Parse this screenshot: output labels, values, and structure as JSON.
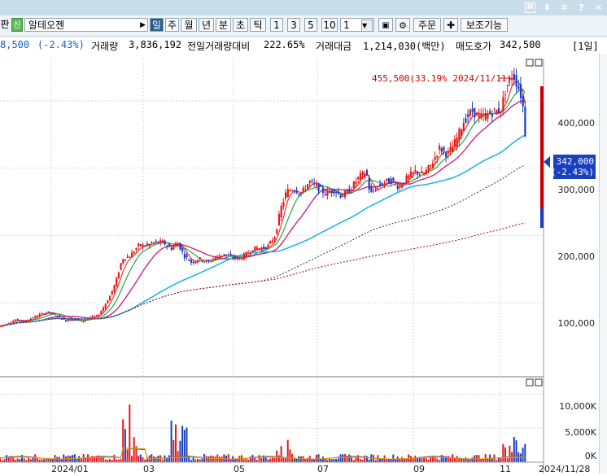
{
  "toolbar": {
    "mode_label": "판",
    "new_badge": "신",
    "stock_name": "알테오젠",
    "period_buttons": [
      "일",
      "주",
      "월",
      "년",
      "분",
      "초",
      "틱"
    ],
    "interval_buttons": [
      "1",
      "3",
      "5",
      "10"
    ],
    "interval_value": "1",
    "order_button": "주문",
    "aux_button": "보조기능",
    "sys_icons": [
      "N",
      "?"
    ]
  },
  "infobar": {
    "price": "8,500",
    "change": "(-2.43%)",
    "volume_label": "거래량",
    "volume": "3,836,192",
    "prev_ratio_label": "전일거래량대비",
    "prev_ratio": "222.65%",
    "amount_label": "거래대금",
    "amount": "1,214,030(백만)",
    "ask_label": "매도호가",
    "ask": "342,500",
    "period_tag": "[1일]"
  },
  "chart_data": [
    {
      "type": "candlestick",
      "title": "",
      "annotation": "455,500(33.19% 2024/11/11)",
      "last_price_label": "342,000",
      "last_change_label": "(-2.43%)",
      "yticks": [
        "400,000",
        "300,000",
        "200,000",
        "100,000"
      ],
      "ytick_values": [
        400000,
        300000,
        200000,
        100000
      ],
      "ylim": [
        -10000,
        470000
      ],
      "x_labels": [
        "2024/01",
        "03",
        "05",
        "07",
        "09",
        "11"
      ],
      "end_date": "2024/11/28",
      "price_path": [
        [
          0,
          65000
        ],
        [
          10,
          70000
        ],
        [
          20,
          75000
        ],
        [
          30,
          72000
        ],
        [
          40,
          78000
        ],
        [
          50,
          83000
        ],
        [
          60,
          86000
        ],
        [
          70,
          80000
        ],
        [
          80,
          73000
        ],
        [
          90,
          76000
        ],
        [
          100,
          72000
        ],
        [
          110,
          78000
        ],
        [
          120,
          80000
        ],
        [
          128,
          95000
        ],
        [
          135,
          110000
        ],
        [
          142,
          130000
        ],
        [
          150,
          165000
        ],
        [
          160,
          170000
        ],
        [
          170,
          185000
        ],
        [
          180,
          185000
        ],
        [
          190,
          190000
        ],
        [
          200,
          190000
        ],
        [
          210,
          180000
        ],
        [
          218,
          190000
        ],
        [
          226,
          170000
        ],
        [
          235,
          160000
        ],
        [
          245,
          165000
        ],
        [
          255,
          160000
        ],
        [
          265,
          168000
        ],
        [
          275,
          172000
        ],
        [
          285,
          168000
        ],
        [
          295,
          165000
        ],
        [
          305,
          175000
        ],
        [
          315,
          182000
        ],
        [
          322,
          180000
        ],
        [
          330,
          185000
        ],
        [
          338,
          200000
        ],
        [
          345,
          240000
        ],
        [
          352,
          265000
        ],
        [
          360,
          270000
        ],
        [
          370,
          262000
        ],
        [
          380,
          280000
        ],
        [
          390,
          272000
        ],
        [
          400,
          262000
        ],
        [
          410,
          268000
        ],
        [
          420,
          258000
        ],
        [
          430,
          268000
        ],
        [
          440,
          285000
        ],
        [
          450,
          295000
        ],
        [
          455,
          260000
        ],
        [
          460,
          268000
        ],
        [
          470,
          278000
        ],
        [
          480,
          282000
        ],
        [
          490,
          272000
        ],
        [
          500,
          285000
        ],
        [
          510,
          295000
        ],
        [
          520,
          290000
        ],
        [
          530,
          305000
        ],
        [
          540,
          330000
        ],
        [
          550,
          320000
        ],
        [
          560,
          340000
        ],
        [
          570,
          370000
        ],
        [
          580,
          385000
        ],
        [
          590,
          375000
        ],
        [
          600,
          380000
        ],
        [
          608,
          385000
        ],
        [
          615,
          385000
        ],
        [
          622,
          420000
        ],
        [
          630,
          440000
        ],
        [
          637,
          420000
        ],
        [
          642,
          400000
        ],
        [
          646,
          342000
        ]
      ],
      "series": [
        {
          "name": "",
          "color": "#ee3333"
        },
        {
          "name": "",
          "color": "#22aa44"
        },
        {
          "name": "",
          "color": "#cc2288"
        },
        {
          "name": "",
          "color": "#22b7e0"
        },
        {
          "name": "",
          "color": "#333333"
        },
        {
          "name": "",
          "color": "#990033"
        }
      ]
    },
    {
      "type": "volume",
      "yticks": [
        "10,000K",
        "5,000K",
        "0K"
      ],
      "ytick_values": [
        10000,
        5000,
        0
      ],
      "ylim": [
        0,
        12200
      ]
    }
  ]
}
